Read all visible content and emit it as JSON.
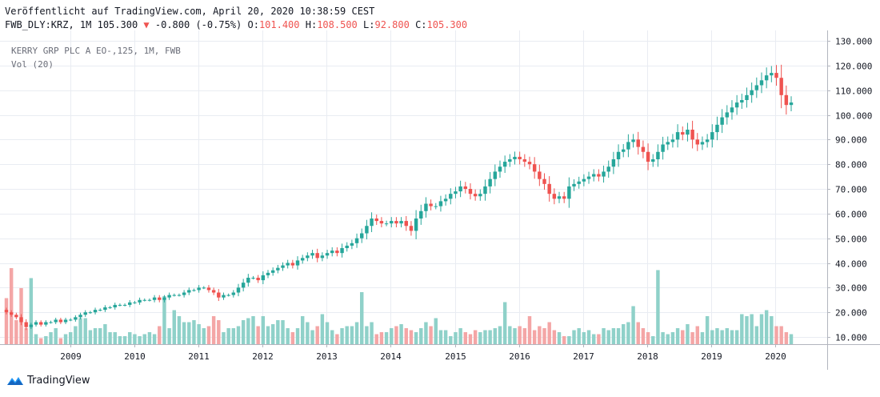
{
  "header": {
    "published": "Veröffentlicht auf TradingView.com, April 20, 2020 10:38:59 CEST",
    "symbol": "FWB_DLY:KRZ, 1M 105.300",
    "change_arrow": "▼",
    "change": "-0.800 (-0.75%)",
    "o_label": "O:",
    "o_value": "101.400",
    "h_label": "H:",
    "h_value": "108.500",
    "l_label": "L:",
    "l_value": "92.800",
    "c_label": "C:",
    "c_value": "105.300"
  },
  "legend": {
    "instrument": "KERRY GRP PLC A EO-,125, 1M, FWB",
    "volume": "Vol (20)"
  },
  "footer": {
    "brand": "TradingView",
    "logo_icon": "tradingview-logo-icon"
  },
  "colors": {
    "up": "#26a69a",
    "down": "#ef5350",
    "vol_up": "#8fd1c9",
    "vol_down": "#f4a6a6",
    "grid": "#e9ecf2"
  },
  "chart_data": {
    "type": "candlestick",
    "interval": "1M",
    "price_axis": {
      "ticks": [
        "130.000",
        "120.000",
        "110.000",
        "100.000",
        "90.000",
        "80.000",
        "70.000",
        "60.000",
        "50.000",
        "40.000",
        "30.000",
        "20.000",
        "10.000"
      ],
      "range": [
        6,
        133
      ]
    },
    "time_axis": {
      "ticks": [
        "2009",
        "2010",
        "2011",
        "2012",
        "2013",
        "2014",
        "2015",
        "2016",
        "2017",
        "2018",
        "2019",
        "2020"
      ]
    },
    "anchors": {
      "x": [
        [
          2008.0,
          8
        ],
        [
          2020.25,
          989
        ]
      ],
      "y": [
        [
          130,
          51
        ],
        [
          10,
          421
        ]
      ]
    },
    "close": [
      20,
      19,
      18,
      16,
      14,
      15,
      16,
      15,
      16,
      16,
      17,
      16,
      17,
      17,
      18,
      19,
      20,
      20,
      21,
      21,
      22,
      22,
      23,
      23,
      23,
      24,
      24,
      25,
      25,
      25,
      26,
      25,
      26,
      27,
      27,
      27,
      28,
      29,
      29,
      30,
      30,
      29,
      28,
      26,
      27,
      27,
      28,
      30,
      32,
      34,
      34,
      33,
      35,
      36,
      37,
      38,
      39,
      40,
      39,
      41,
      42,
      43,
      44,
      42,
      43,
      44,
      45,
      44,
      46,
      47,
      48,
      50,
      52,
      55,
      58,
      57,
      56,
      56,
      57,
      56,
      57,
      55,
      53,
      58,
      61,
      64,
      63,
      63,
      65,
      66,
      68,
      69,
      71,
      70,
      68,
      67,
      68,
      71,
      74,
      77,
      79,
      81,
      82,
      83,
      82,
      81,
      80,
      77,
      74,
      72,
      68,
      66,
      67,
      66,
      71,
      72,
      73,
      74,
      75,
      76,
      75,
      77,
      79,
      82,
      85,
      86,
      89,
      90,
      87,
      85,
      81,
      82,
      85,
      88,
      89,
      90,
      93,
      92,
      94,
      90,
      88,
      89,
      90,
      93,
      96,
      99,
      101,
      103,
      105,
      106,
      108,
      110,
      112,
      114,
      116,
      117,
      115,
      108,
      104,
      105
    ],
    "volume_k": [
      23,
      38,
      12,
      28,
      8,
      33,
      5,
      3,
      4,
      6,
      8,
      3,
      5,
      6,
      9,
      13,
      13,
      7,
      8,
      8,
      10,
      6,
      6,
      4,
      4,
      6,
      5,
      4,
      5,
      6,
      5,
      9,
      24,
      8,
      17,
      14,
      11,
      11,
      12,
      10,
      8,
      9,
      14,
      12,
      6,
      8,
      8,
      9,
      12,
      13,
      14,
      9,
      14,
      9,
      10,
      12,
      12,
      8,
      6,
      8,
      14,
      11,
      7,
      9,
      15,
      11,
      7,
      5,
      8,
      9,
      9,
      11,
      26,
      9,
      11,
      5,
      6,
      6,
      8,
      9,
      10,
      8,
      7,
      6,
      8,
      11,
      9,
      13,
      7,
      7,
      4,
      6,
      8,
      6,
      5,
      7,
      6,
      7,
      7,
      8,
      9,
      21,
      9,
      8,
      9,
      8,
      14,
      7,
      9,
      8,
      11,
      7,
      6,
      4,
      4,
      7,
      8,
      6,
      7,
      5,
      5,
      8,
      7,
      8,
      8,
      10,
      11,
      19,
      11,
      8,
      6,
      4,
      37,
      6,
      5,
      6,
      8,
      7,
      10,
      6,
      9,
      6,
      14,
      7,
      8,
      7,
      8,
      7,
      7,
      15,
      14,
      15,
      9,
      15,
      17,
      14,
      9,
      9,
      6,
      5
    ]
  }
}
